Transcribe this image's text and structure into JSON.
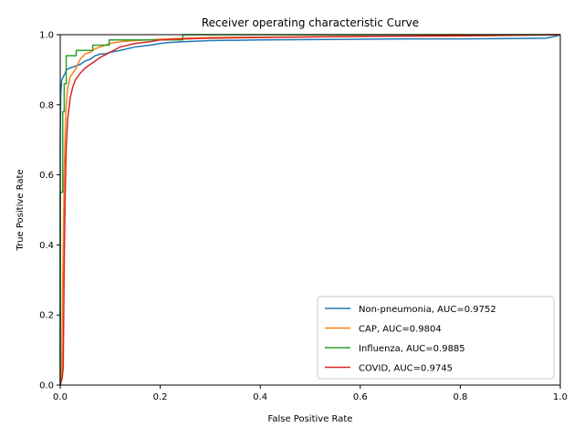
{
  "chart_data": {
    "type": "line",
    "title": "Receiver operating characteristic Curve",
    "xlabel": "False Positive Rate",
    "ylabel": "True Positive Rate",
    "xlim": [
      0,
      1
    ],
    "ylim": [
      0,
      1
    ],
    "x_ticks": [
      "0.0",
      "0.2",
      "0.4",
      "0.6",
      "0.8",
      "1.0"
    ],
    "y_ticks": [
      "0.0",
      "0.2",
      "0.4",
      "0.6",
      "0.8",
      "1.0"
    ],
    "grid": false,
    "legend_position": "lower-right",
    "series": [
      {
        "name": "Non-pneumonia, AUC=0.9752",
        "color": "#1f77b4",
        "points": [
          [
            0,
            0
          ],
          [
            0,
            0.7
          ],
          [
            0.001,
            0.83
          ],
          [
            0.003,
            0.87
          ],
          [
            0.006,
            0.88
          ],
          [
            0.01,
            0.89
          ],
          [
            0.012,
            0.9
          ],
          [
            0.02,
            0.905
          ],
          [
            0.03,
            0.91
          ],
          [
            0.04,
            0.915
          ],
          [
            0.05,
            0.925
          ],
          [
            0.06,
            0.93
          ],
          [
            0.07,
            0.94
          ],
          [
            0.08,
            0.945
          ],
          [
            0.09,
            0.945
          ],
          [
            0.1,
            0.95
          ],
          [
            0.12,
            0.955
          ],
          [
            0.15,
            0.965
          ],
          [
            0.18,
            0.97
          ],
          [
            0.2,
            0.975
          ],
          [
            0.22,
            0.978
          ],
          [
            0.25,
            0.98
          ],
          [
            0.3,
            0.983
          ],
          [
            0.4,
            0.985
          ],
          [
            0.5,
            0.986
          ],
          [
            0.6,
            0.987
          ],
          [
            0.7,
            0.988
          ],
          [
            0.8,
            0.988
          ],
          [
            0.9,
            0.989
          ],
          [
            0.97,
            0.99
          ],
          [
            0.99,
            0.995
          ],
          [
            1.0,
            1.0
          ]
        ]
      },
      {
        "name": "CAP, AUC=0.9804",
        "color": "#ff7f0e",
        "points": [
          [
            0,
            0
          ],
          [
            0.003,
            0.02
          ],
          [
            0.005,
            0.3
          ],
          [
            0.008,
            0.6
          ],
          [
            0.01,
            0.72
          ],
          [
            0.012,
            0.8
          ],
          [
            0.015,
            0.85
          ],
          [
            0.02,
            0.88
          ],
          [
            0.025,
            0.89
          ],
          [
            0.03,
            0.9
          ],
          [
            0.04,
            0.93
          ],
          [
            0.05,
            0.945
          ],
          [
            0.06,
            0.95
          ],
          [
            0.07,
            0.96
          ],
          [
            0.08,
            0.965
          ],
          [
            0.1,
            0.975
          ],
          [
            0.12,
            0.98
          ],
          [
            0.15,
            0.983
          ],
          [
            0.2,
            0.987
          ],
          [
            0.25,
            0.99
          ],
          [
            0.3,
            0.992
          ],
          [
            0.4,
            0.993
          ],
          [
            0.6,
            0.995
          ],
          [
            0.8,
            0.996
          ],
          [
            1.0,
            1.0
          ]
        ]
      },
      {
        "name": "Influenza, AUC=0.9885",
        "color": "#2ca02c",
        "points": [
          [
            0,
            0
          ],
          [
            0,
            0.55
          ],
          [
            0.005,
            0.55
          ],
          [
            0.005,
            0.78
          ],
          [
            0.008,
            0.78
          ],
          [
            0.008,
            0.86
          ],
          [
            0.012,
            0.86
          ],
          [
            0.012,
            0.94
          ],
          [
            0.032,
            0.94
          ],
          [
            0.032,
            0.955
          ],
          [
            0.065,
            0.955
          ],
          [
            0.065,
            0.97
          ],
          [
            0.098,
            0.97
          ],
          [
            0.098,
            0.985
          ],
          [
            0.245,
            0.985
          ],
          [
            0.245,
            1.0
          ],
          [
            1.0,
            1.0
          ]
        ]
      },
      {
        "name": "COVID, AUC=0.9745",
        "color": "#d62728",
        "points": [
          [
            0,
            0
          ],
          [
            0.002,
            0.01
          ],
          [
            0.004,
            0.02
          ],
          [
            0.006,
            0.05
          ],
          [
            0.007,
            0.2
          ],
          [
            0.008,
            0.35
          ],
          [
            0.01,
            0.55
          ],
          [
            0.012,
            0.68
          ],
          [
            0.015,
            0.76
          ],
          [
            0.02,
            0.82
          ],
          [
            0.025,
            0.85
          ],
          [
            0.03,
            0.87
          ],
          [
            0.04,
            0.89
          ],
          [
            0.05,
            0.905
          ],
          [
            0.06,
            0.915
          ],
          [
            0.08,
            0.935
          ],
          [
            0.1,
            0.95
          ],
          [
            0.12,
            0.965
          ],
          [
            0.15,
            0.975
          ],
          [
            0.18,
            0.98
          ],
          [
            0.2,
            0.985
          ],
          [
            0.25,
            0.988
          ],
          [
            0.3,
            0.99
          ],
          [
            0.4,
            0.992
          ],
          [
            0.6,
            0.995
          ],
          [
            0.8,
            0.997
          ],
          [
            1.0,
            1.0
          ]
        ]
      }
    ]
  }
}
